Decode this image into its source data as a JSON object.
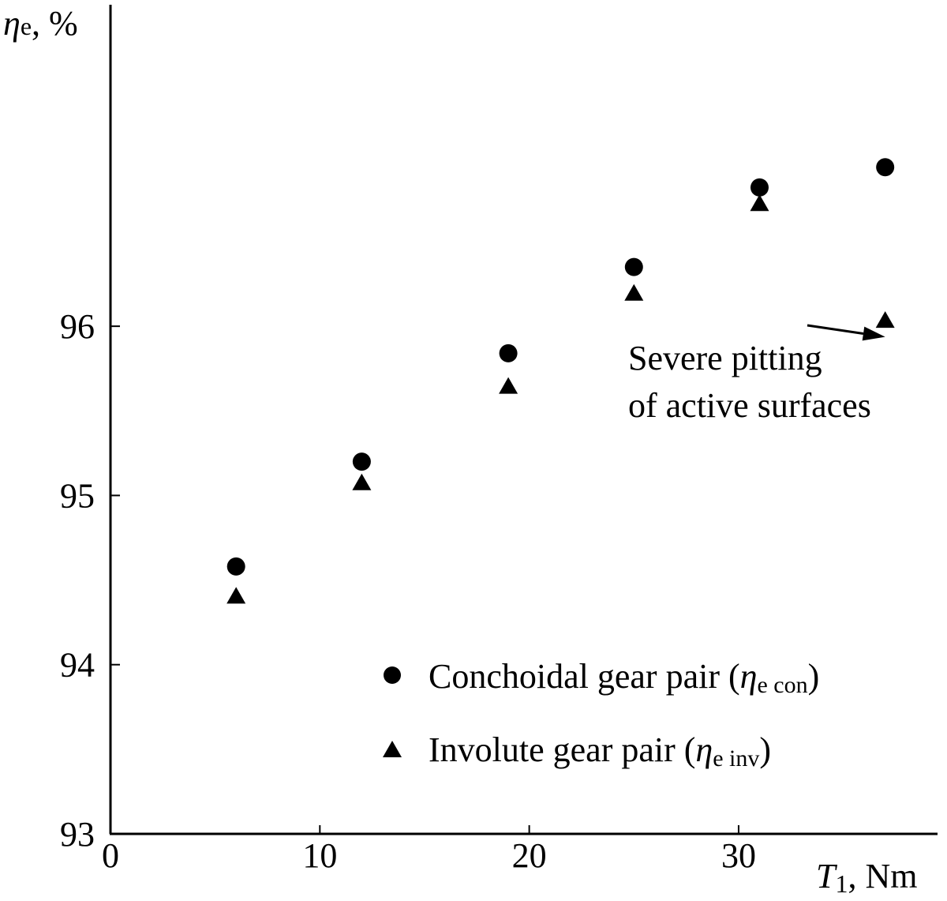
{
  "chart_data": {
    "type": "scatter",
    "x_axis": {
      "label_symbol": "T",
      "label_subscript": "1",
      "label_unit": ", Nm",
      "range": [
        0,
        39.5
      ],
      "ticks": [
        0,
        10,
        20,
        30
      ],
      "tick_labels": [
        "0",
        "10",
        "20",
        "30"
      ]
    },
    "y_axis": {
      "label_symbol": "η",
      "label_subscript": "e",
      "label_unit": ", %",
      "range": [
        93,
        97.9
      ],
      "ticks": [
        93,
        94,
        95,
        96
      ],
      "tick_labels": [
        "93",
        "94",
        "95",
        "96"
      ]
    },
    "series": [
      {
        "name": "Conchoidal gear pair (",
        "name_symbol": "η",
        "name_subscript": "e con",
        "name_close": ")",
        "marker": "circle",
        "x": [
          6,
          12,
          19,
          25,
          31,
          37
        ],
        "y": [
          94.58,
          95.2,
          95.84,
          96.35,
          96.82,
          96.94
        ]
      },
      {
        "name": "Involute gear pair (",
        "name_symbol": "η",
        "name_subscript": "e inv",
        "name_close": ")",
        "marker": "triangle",
        "x": [
          6,
          12,
          19,
          25,
          31,
          37
        ],
        "y": [
          94.41,
          95.08,
          95.65,
          96.2,
          96.73,
          96.04
        ]
      }
    ],
    "annotation": {
      "lines": [
        "Severe pitting",
        "of active surfaces"
      ],
      "target": {
        "x": 37,
        "y": 96.04
      }
    },
    "legend_position": "bottom-right",
    "grid": false
  }
}
